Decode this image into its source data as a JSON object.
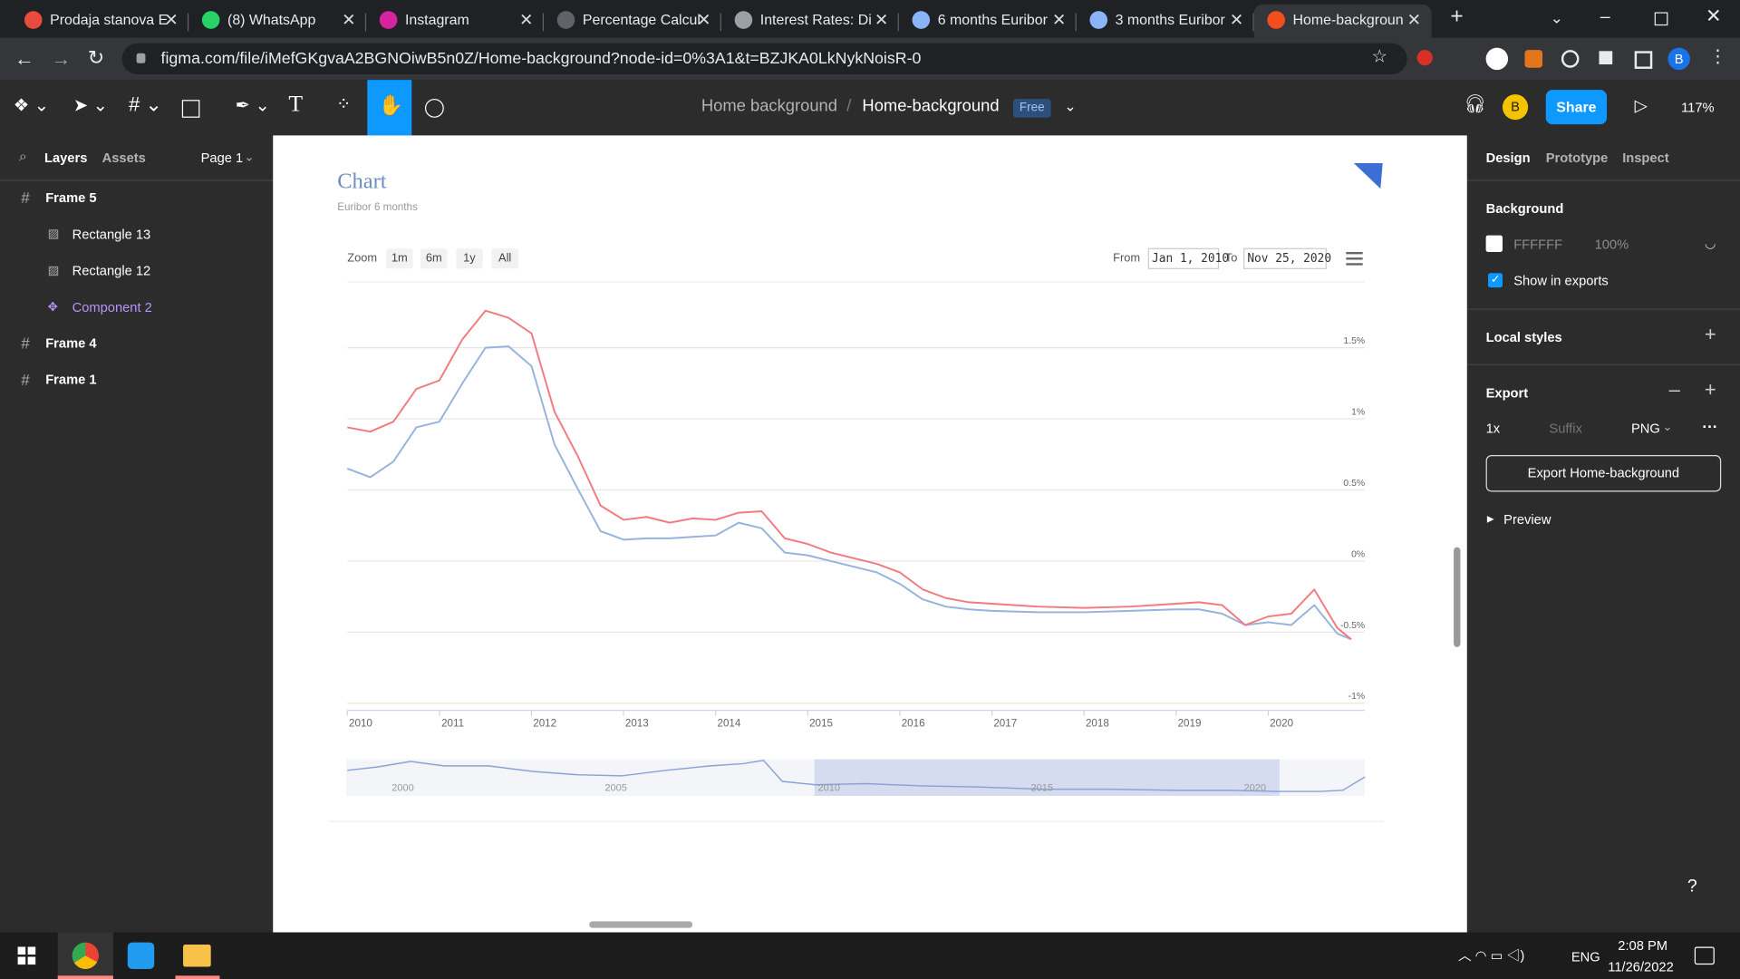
{
  "tabs": [
    "Prodaja stanova E",
    "(8) WhatsApp",
    "Instagram",
    "Percentage Calcul",
    "Interest Rates: Di",
    "6 months Euribor",
    "3 months Euribor",
    "Home-backgroun"
  ],
  "address_bar": {
    "url": "figma.com/file/iMefGKgvaA2BGNOiwB5n0Z/Home-background?node-id=0%3A1&t=BZJKA0LkNykNoisR-0",
    "profile": "B"
  },
  "toolbar": {
    "project": "Home background",
    "separator": "/",
    "file": "Home-background",
    "plan": "Free",
    "avatar": "B",
    "share": "Share",
    "zoom": "117%"
  },
  "layers_panel": {
    "tabs": [
      "Layers",
      "Assets"
    ],
    "page": "Page 1",
    "layers": [
      "Frame 5",
      "Rectangle 13",
      "Rectangle 12",
      "Component 2",
      "Frame 4",
      "Frame 1"
    ]
  },
  "design_panel": {
    "tabs": [
      "Design",
      "Prototype",
      "Inspect"
    ],
    "background": {
      "title": "Background",
      "color": "FFFFFF",
      "opacity": "100%",
      "show_in_exports": "Show in exports"
    },
    "local_styles": "Local styles",
    "export": {
      "title": "Export",
      "scale": "1x",
      "suffix": "Suffix",
      "format": "PNG",
      "button": "Export Home-background",
      "preview": "Preview"
    }
  },
  "canvas": {
    "chart_data": {
      "type": "line",
      "title": "Chart",
      "subtitle": "Euribor 6 months",
      "x": [
        2010,
        2010.25,
        2010.5,
        2010.75,
        2011,
        2011.25,
        2011.5,
        2011.75,
        2012,
        2012.25,
        2012.5,
        2012.75,
        2013,
        2013.25,
        2013.5,
        2013.75,
        2014,
        2014.25,
        2014.5,
        2014.75,
        2015,
        2015.25,
        2015.5,
        2015.75,
        2016,
        2016.25,
        2016.5,
        2016.75,
        2017,
        2017.5,
        2018,
        2018.5,
        2019,
        2019.25,
        2019.5,
        2019.75,
        2020,
        2020.25,
        2020.5,
        2020.75,
        2020.9
      ],
      "xlim": [
        2010,
        2021.05
      ],
      "xticks": [
        2010,
        2011,
        2012,
        2013,
        2014,
        2015,
        2016,
        2017,
        2018,
        2019,
        2020
      ],
      "ylim": [
        -1.05,
        1.9
      ],
      "yticks": [
        {
          "value": -1,
          "label": "-1%"
        },
        {
          "value": -0.5,
          "label": "-0.5%"
        },
        {
          "value": 0,
          "label": "0%"
        },
        {
          "value": 0.5,
          "label": "0.5%"
        },
        {
          "value": 1,
          "label": "1%"
        },
        {
          "value": 1.5,
          "label": "1.5%"
        }
      ],
      "grid": true,
      "series": [
        {
          "color": "#97b3dc",
          "values": [
            0.65,
            0.59,
            0.7,
            0.94,
            0.98,
            1.25,
            1.5,
            1.51,
            1.37,
            0.82,
            0.51,
            0.21,
            0.15,
            0.16,
            0.16,
            0.17,
            0.18,
            0.27,
            0.23,
            0.06,
            0.04,
            0,
            -0.04,
            -0.08,
            -0.16,
            -0.27,
            -0.32,
            -0.34,
            -0.35,
            -0.36,
            -0.36,
            -0.35,
            -0.34,
            -0.34,
            -0.37,
            -0.45,
            -0.43,
            -0.45,
            -0.31,
            -0.51,
            -0.55
          ]
        },
        {
          "color": "#f37b7f",
          "values": [
            0.94,
            0.91,
            0.98,
            1.21,
            1.27,
            1.56,
            1.76,
            1.71,
            1.6,
            1.05,
            0.74,
            0.39,
            0.29,
            0.31,
            0.27,
            0.3,
            0.29,
            0.34,
            0.35,
            0.16,
            0.12,
            0.06,
            0.02,
            -0.02,
            -0.08,
            -0.2,
            -0.26,
            -0.29,
            -0.3,
            -0.32,
            -0.33,
            -0.32,
            -0.3,
            -0.29,
            -0.31,
            -0.45,
            -0.39,
            -0.37,
            -0.2,
            -0.47,
            -0.55
          ]
        }
      ]
    },
    "range_selector": {
      "zoom": "Zoom",
      "buttons": [
        "1m",
        "6m",
        "1y",
        "All"
      ],
      "from": "From",
      "from_date": "Jan 1, 2010",
      "to": "To",
      "to_date": "Nov 25, 2020"
    },
    "navigator": {
      "labels": [
        "2000",
        "2005",
        "2010",
        "2015",
        "2020"
      ]
    }
  },
  "help": "?",
  "taskbar": {
    "language": "ENG",
    "time": "2:08 PM",
    "date": "11/26/2022"
  }
}
